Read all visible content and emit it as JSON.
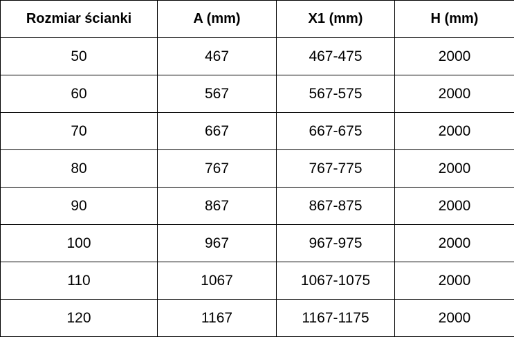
{
  "table": {
    "headers": [
      "Rozmiar ścianki",
      "A (mm)",
      "X1 (mm)",
      "H (mm)"
    ],
    "rows": [
      [
        "50",
        "467",
        "467-475",
        "2000"
      ],
      [
        "60",
        "567",
        "567-575",
        "2000"
      ],
      [
        "70",
        "667",
        "667-675",
        "2000"
      ],
      [
        "80",
        "767",
        "767-775",
        "2000"
      ],
      [
        "90",
        "867",
        "867-875",
        "2000"
      ],
      [
        "100",
        "967",
        "967-975",
        "2000"
      ],
      [
        "110",
        "1067",
        "1067-1075",
        "2000"
      ],
      [
        "120",
        "1167",
        "1167-1175",
        "2000"
      ]
    ]
  }
}
